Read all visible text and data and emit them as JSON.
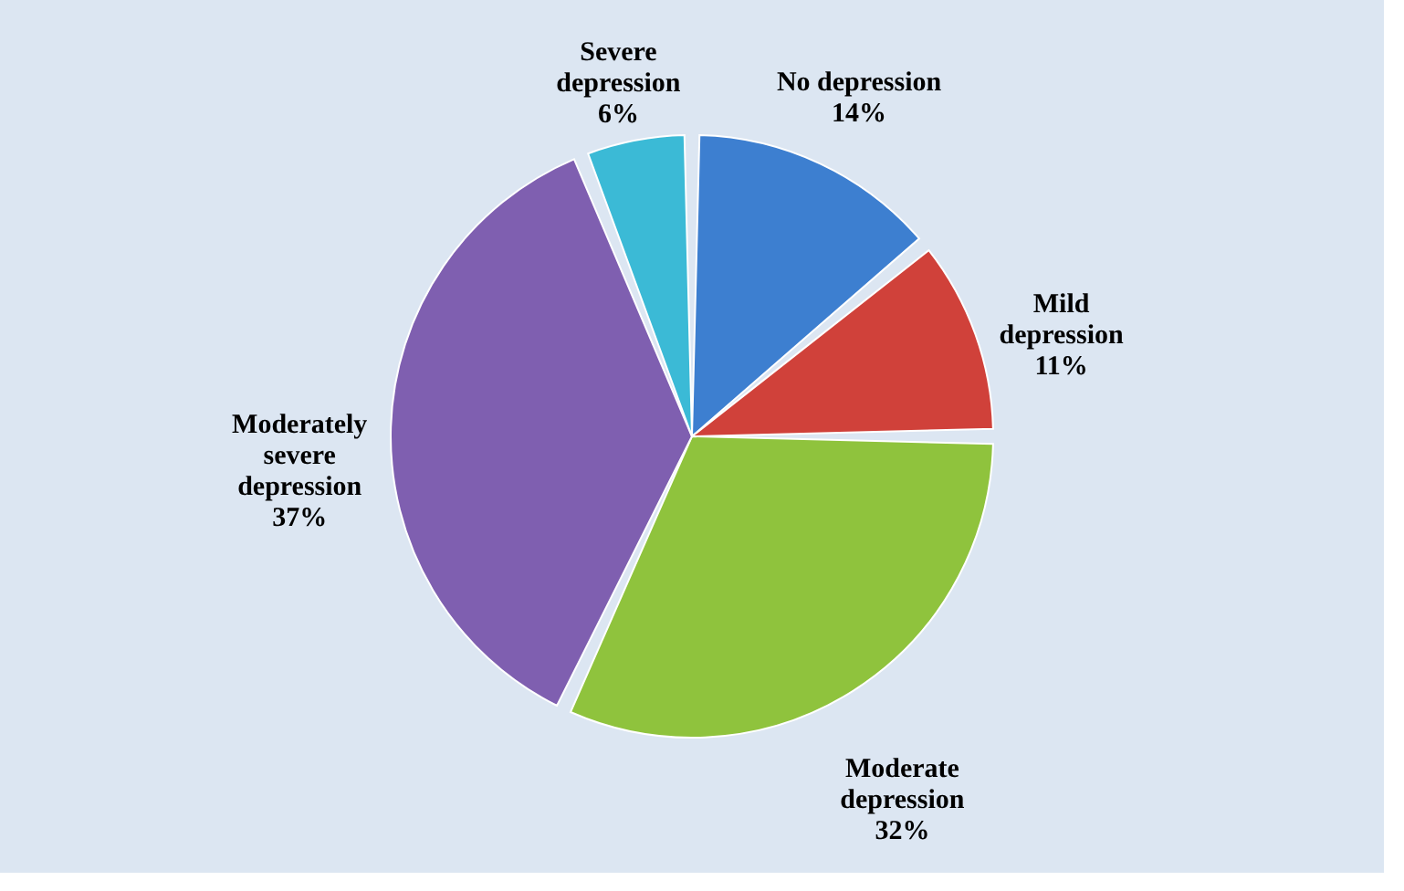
{
  "chart_data": {
    "type": "pie",
    "categories": [
      "No depression",
      "Mild\ndepression",
      "Moderate\ndepression",
      "Moderately\nsevere\ndepression",
      "Severe\ndepression"
    ],
    "values": [
      14,
      11,
      32,
      37,
      6
    ],
    "colors": [
      "#3d7fd0",
      "#d0413a",
      "#8fc33d",
      "#7f5fb0",
      "#3bbad6"
    ],
    "value_labels": [
      "14%",
      "11%",
      "32%",
      "37%",
      "6%"
    ],
    "legend": false
  }
}
